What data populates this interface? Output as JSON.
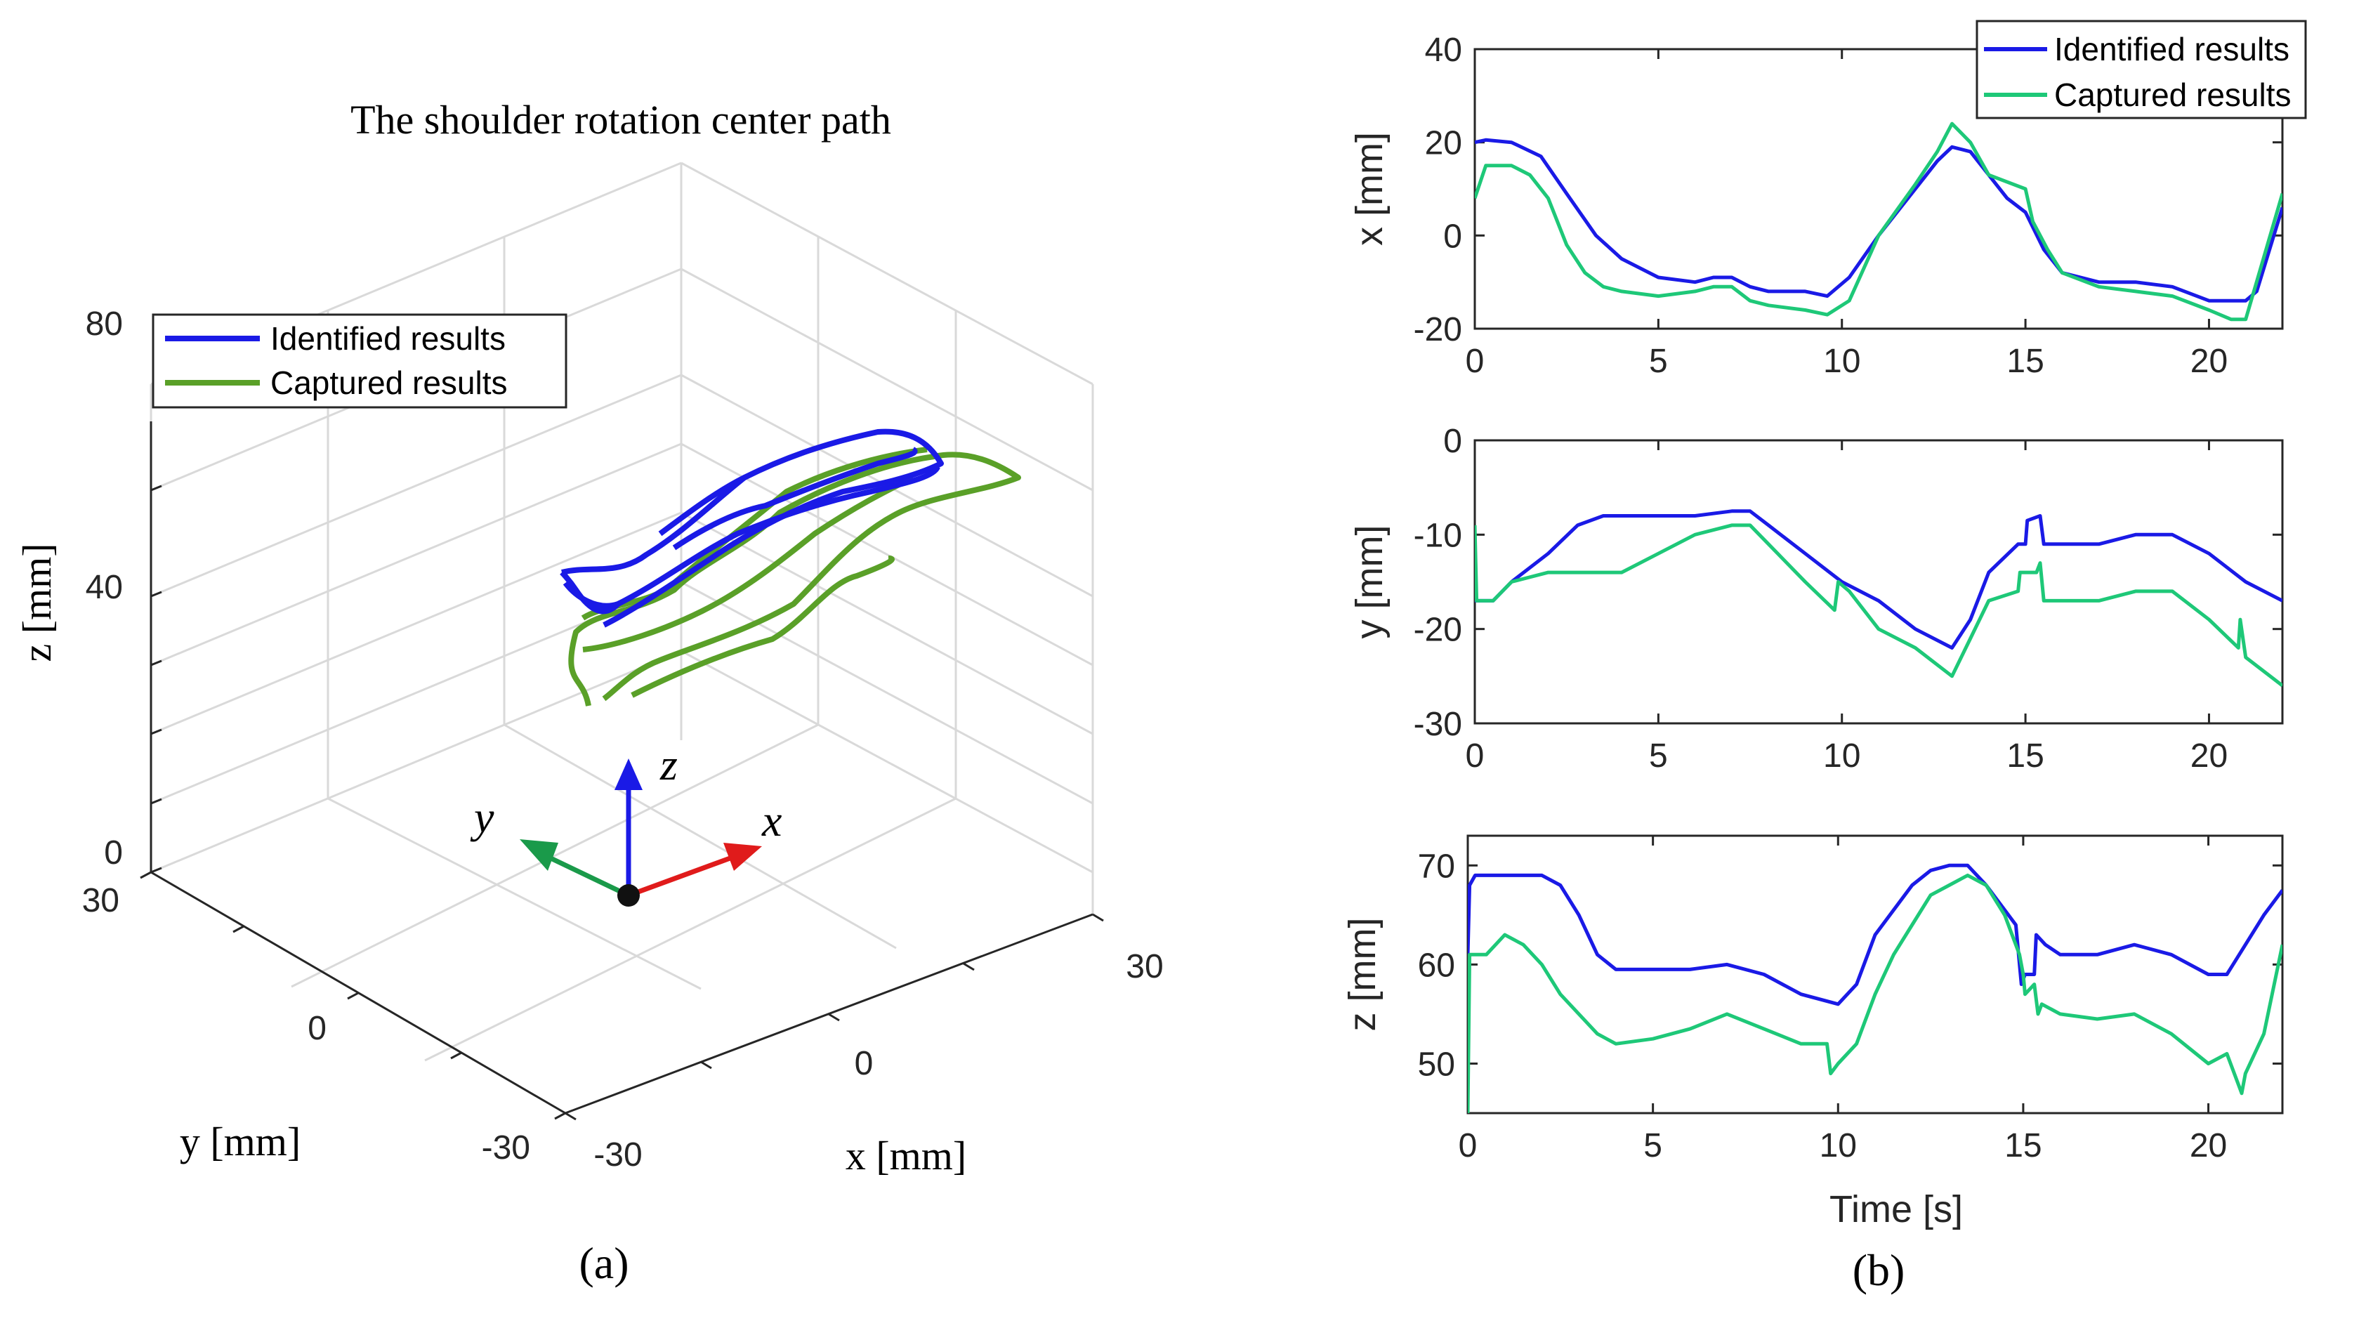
{
  "panel_a": {
    "caption": "(a)",
    "title": "The shoulder rotation center path",
    "xlabel": "x [mm]",
    "ylabel": "y [mm]",
    "zlabel": "z [mm]",
    "x_ticks": [
      "-30",
      "0",
      "30"
    ],
    "y_ticks": [
      "30",
      "0",
      "-30"
    ],
    "z_ticks": [
      "0",
      "40",
      "80"
    ],
    "legend": [
      "Identified results",
      "Captured results"
    ],
    "frame_labels": {
      "x": "x",
      "y": "y",
      "z": "z"
    },
    "colors": {
      "identified": "#1a1ae6",
      "captured": "#5aa028",
      "frame_x": "#e01b1b",
      "frame_y": "#1a9a4a",
      "frame_z": "#1a1ae6"
    }
  },
  "panel_b": {
    "caption": "(b)",
    "xlabel": "Time [s]",
    "legend": [
      "Identified results",
      "Captured results"
    ],
    "colors": {
      "identified": "#1a1ae6",
      "captured": "#1ec878"
    }
  },
  "chart_data": [
    {
      "type": "line",
      "title": "The shoulder rotation center path",
      "projection": "3d",
      "xlabel": "x [mm]",
      "ylabel": "y [mm]",
      "zlabel": "z [mm]",
      "xlim": [
        -30,
        30
      ],
      "ylim": [
        -30,
        30
      ],
      "zlim": [
        0,
        80
      ],
      "series": [
        {
          "name": "Identified results"
        },
        {
          "name": "Captured results"
        }
      ]
    },
    {
      "type": "line",
      "xlabel": "",
      "ylabel": "x [mm]",
      "xlim": [
        0,
        22
      ],
      "ylim": [
        -20,
        40
      ],
      "x_ticks": [
        0,
        5,
        10,
        15,
        20
      ],
      "y_ticks": [
        -20,
        0,
        20,
        40
      ],
      "series": [
        {
          "name": "Identified results",
          "x": [
            0,
            0.3,
            1,
            1.8,
            2.5,
            3.3,
            4,
            5,
            6,
            6.5,
            7,
            7.5,
            8,
            9,
            9.6,
            10.2,
            11,
            12,
            12.6,
            13,
            13.5,
            14,
            14.5,
            15,
            15.5,
            16,
            17,
            18,
            19,
            20,
            21,
            21.3,
            22
          ],
          "values": [
            20,
            20.5,
            20,
            17,
            9,
            0,
            -5,
            -9,
            -10,
            -9,
            -9,
            -11,
            -12,
            -12,
            -13,
            -9,
            0,
            10,
            16,
            19,
            18,
            13,
            8,
            5,
            -3,
            -8,
            -10,
            -10,
            -11,
            -14,
            -14,
            -12,
            6
          ]
        },
        {
          "name": "Captured results",
          "x": [
            0,
            0.3,
            1,
            1.5,
            2,
            2.5,
            3,
            3.5,
            4,
            5,
            6,
            6.5,
            7,
            7.5,
            8,
            9,
            9.6,
            10.2,
            11,
            12,
            12.6,
            13,
            13.5,
            14,
            15,
            15.2,
            15.6,
            16,
            17,
            18,
            19,
            20,
            20.6,
            21,
            22
          ],
          "values": [
            8,
            15,
            15,
            13,
            8,
            -2,
            -8,
            -11,
            -12,
            -13,
            -12,
            -11,
            -11,
            -14,
            -15,
            -16,
            -17,
            -14,
            0,
            11,
            18,
            24,
            20,
            13,
            10,
            3,
            -3,
            -8,
            -11,
            -12,
            -13,
            -16,
            -18,
            -18,
            9
          ]
        }
      ]
    },
    {
      "type": "line",
      "xlabel": "",
      "ylabel": "y [mm]",
      "xlim": [
        0,
        22
      ],
      "ylim": [
        -30,
        0
      ],
      "x_ticks": [
        0,
        5,
        10,
        15,
        20
      ],
      "y_ticks": [
        -30,
        -20,
        -10,
        0
      ],
      "series": [
        {
          "name": "Identified results",
          "x": [
            0,
            0.5,
            1,
            2,
            2.8,
            3.5,
            5,
            6,
            7,
            7.5,
            8,
            9,
            10,
            11,
            12,
            13,
            13.5,
            14,
            14.8,
            15,
            15.05,
            15.4,
            15.5,
            17,
            18,
            19,
            20,
            21,
            22
          ],
          "values": [
            -17,
            -17,
            -15,
            -12,
            -9,
            -8,
            -8,
            -8,
            -7.5,
            -7.5,
            -9,
            -12,
            -15,
            -17,
            -20,
            -22,
            -19,
            -14,
            -11,
            -11,
            -8.5,
            -8,
            -11,
            -11,
            -10,
            -10,
            -12,
            -15,
            -17
          ]
        },
        {
          "name": "Captured results",
          "x": [
            0,
            0.05,
            0.1,
            0.5,
            1,
            2,
            3,
            4,
            5,
            6,
            7,
            7.5,
            8,
            9,
            9.8,
            9.9,
            10.2,
            11,
            12,
            13,
            13.5,
            14,
            14.8,
            14.85,
            15.3,
            15.4,
            15.5,
            16,
            17,
            18,
            19,
            20,
            20.8,
            20.85,
            21,
            22
          ],
          "values": [
            -9,
            -17,
            -17,
            -17,
            -15,
            -14,
            -14,
            -14,
            -12,
            -10,
            -9,
            -9,
            -11,
            -15,
            -18,
            -15,
            -16,
            -20,
            -22,
            -25,
            -21,
            -17,
            -16,
            -14,
            -14,
            -13,
            -17,
            -17,
            -17,
            -16,
            -16,
            -19,
            -22,
            -19,
            -23,
            -26
          ]
        }
      ]
    },
    {
      "type": "line",
      "xlabel": "Time [s]",
      "ylabel": "z [mm]",
      "xlim": [
        0,
        22
      ],
      "ylim": [
        45,
        73
      ],
      "x_ticks": [
        0,
        5,
        10,
        15,
        20
      ],
      "y_ticks": [
        50,
        60,
        70
      ],
      "series": [
        {
          "name": "Identified results",
          "x": [
            0,
            0.05,
            0.2,
            1,
            2,
            2.5,
            3,
            3.5,
            4,
            5,
            6,
            7,
            8,
            9,
            10,
            10.5,
            11,
            12,
            12.5,
            13,
            13.5,
            14,
            14.8,
            14.95,
            15.05,
            15.3,
            15.35,
            15.6,
            16,
            17,
            18,
            19,
            20,
            20.5,
            21,
            21.5,
            22
          ],
          "values": [
            61,
            68,
            69,
            69,
            69,
            68,
            65,
            61,
            59.5,
            59.5,
            59.5,
            60,
            59,
            57,
            56,
            58,
            63,
            68,
            69.5,
            70,
            70,
            68,
            64,
            58,
            59,
            59,
            63,
            62,
            61,
            61,
            62,
            61,
            59,
            59,
            62,
            65,
            67.5
          ]
        },
        {
          "name": "Captured results",
          "x": [
            0,
            0.05,
            0.1,
            0.5,
            1,
            1.5,
            2,
            2.5,
            3,
            3.5,
            4,
            5,
            6,
            7,
            8,
            9,
            9.7,
            9.8,
            10,
            10.5,
            11,
            11.5,
            12,
            12.5,
            13,
            13.5,
            14,
            14.5,
            14.9,
            15,
            15.05,
            15.3,
            15.4,
            15.5,
            16,
            17,
            18,
            19,
            20,
            20.5,
            20.9,
            21,
            21.5,
            22
          ],
          "values": [
            45,
            61,
            61,
            61,
            63,
            62,
            60,
            57,
            55,
            53,
            52,
            52.5,
            53.5,
            55,
            53.5,
            52,
            52,
            49,
            50,
            52,
            57,
            61,
            64,
            67,
            68,
            69,
            68,
            65,
            61,
            59,
            57,
            58,
            55,
            56,
            55,
            54.5,
            55,
            53,
            50,
            51,
            47,
            49,
            53,
            62
          ]
        }
      ]
    }
  ]
}
